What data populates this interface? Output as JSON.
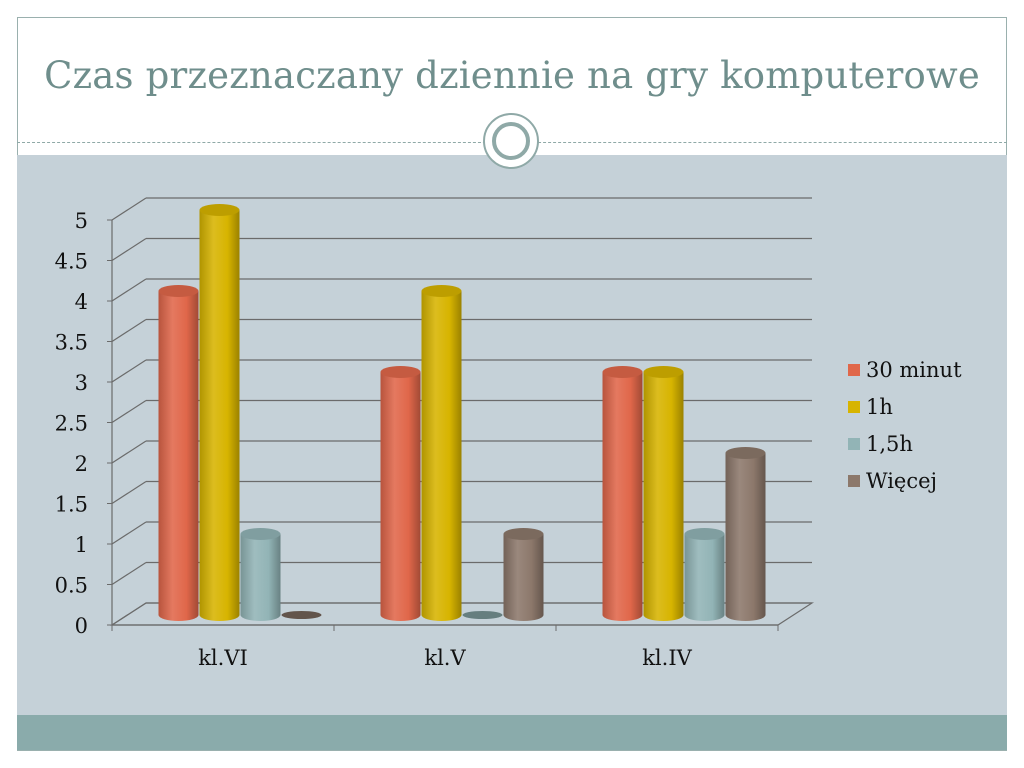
{
  "slide": {
    "title": "Czas przeznaczany dziennie na gry komputerowe"
  },
  "chart_data": {
    "type": "bar",
    "title": "",
    "xlabel": "",
    "ylabel": "",
    "categories": [
      "kl.VI",
      "kl.V",
      "kl.IV"
    ],
    "y_ticks": [
      "0",
      "0.5",
      "1",
      "1.5",
      "2",
      "2.5",
      "3",
      "3.5",
      "4",
      "4.5",
      "5"
    ],
    "ylim": [
      0,
      5
    ],
    "grid": true,
    "legend_position": "right",
    "series": [
      {
        "name": "30 minut",
        "values": [
          4,
          3,
          3
        ],
        "color": "#e0674a"
      },
      {
        "name": "1h",
        "values": [
          5,
          4,
          3
        ],
        "color": "#d7b400"
      },
      {
        "name": "1,5h",
        "values": [
          1,
          0,
          1
        ],
        "color": "#92b4b6"
      },
      {
        "name": "Więcej",
        "values": [
          0,
          1,
          2
        ],
        "color": "#8c786b"
      }
    ]
  }
}
